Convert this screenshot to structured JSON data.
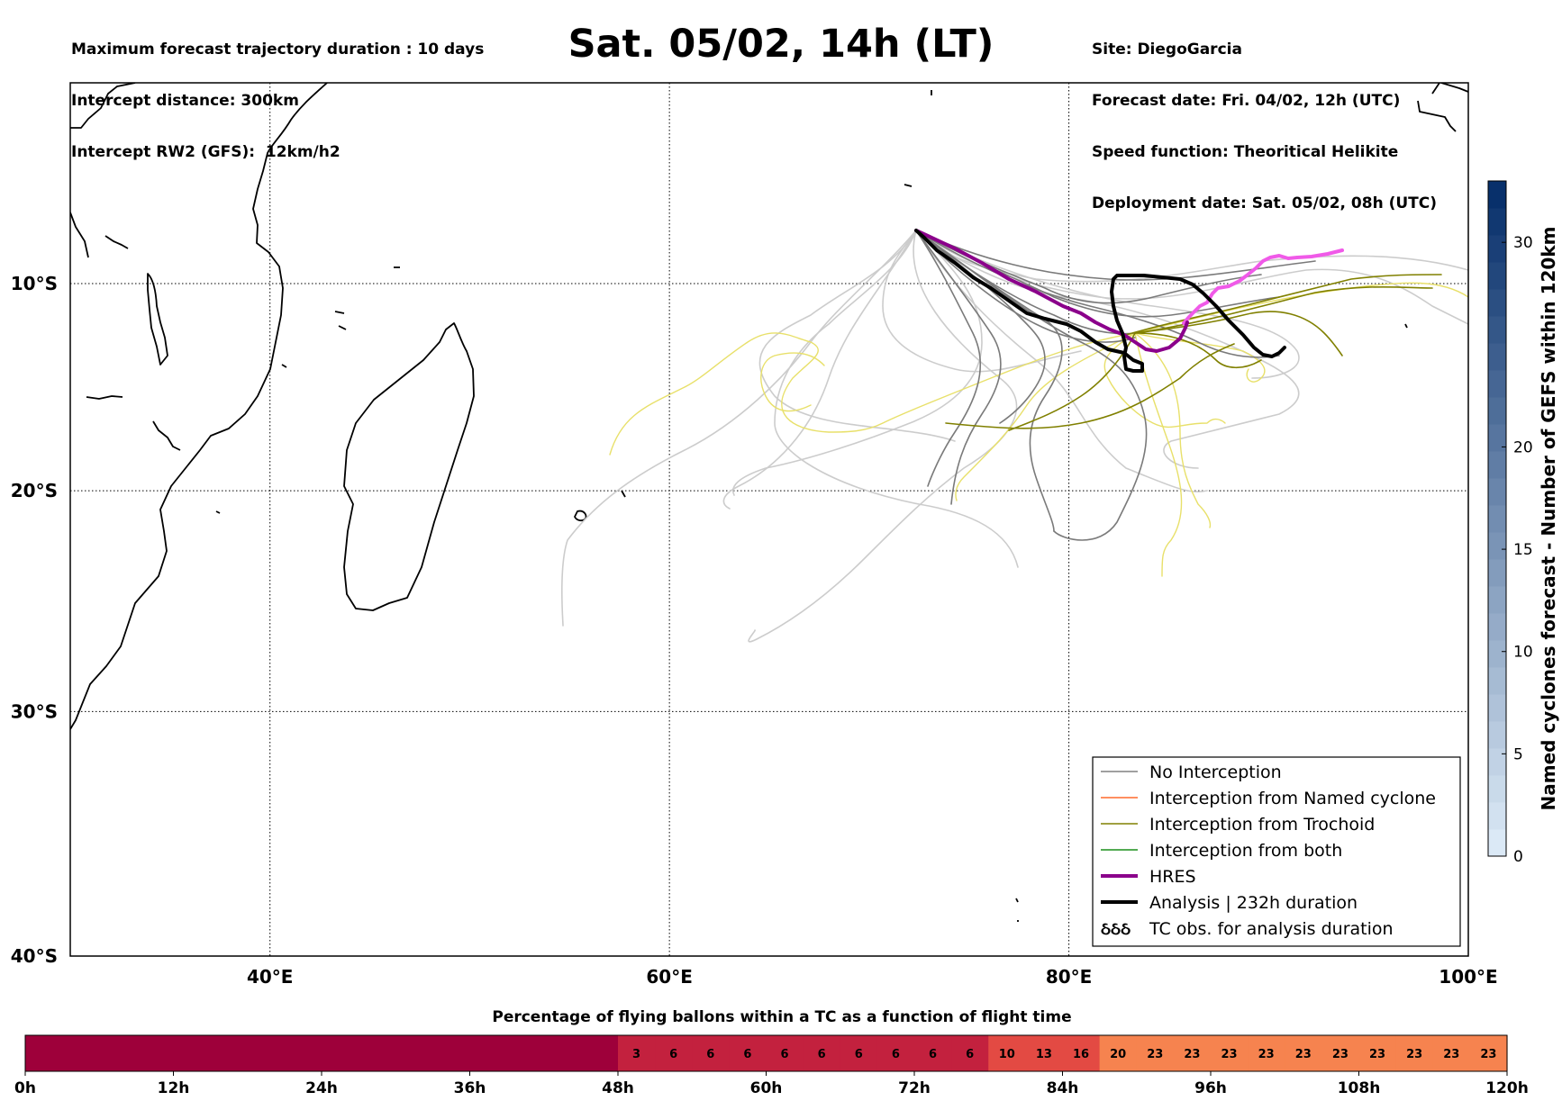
{
  "header": {
    "left_lines": [
      "Maximum forecast trajectory duration : 10 days",
      "Intercept distance: 300km",
      "Intercept RW2 (GFS):  12km/h2"
    ],
    "title": "Sat. 05/02, 14h (LT)",
    "right_lines": [
      "Site: DiegoGarcia",
      "Forecast date: Fri. 04/02, 12h (UTC)",
      "Speed function: Theoritical Helikite",
      "Deployment date: Sat. 05/02, 08h (UTC)"
    ]
  },
  "map": {
    "lon_range": [
      30,
      100
    ],
    "lat_range": [
      -40,
      0
    ],
    "lon_ticks": [
      {
        "value": 40,
        "label": "40°E"
      },
      {
        "value": 60,
        "label": "60°E"
      },
      {
        "value": 80,
        "label": "80°E"
      },
      {
        "value": 100,
        "label": "100°E"
      }
    ],
    "lat_ticks": [
      {
        "value": -10,
        "label": "10°S"
      },
      {
        "value": -20,
        "label": "20°S"
      },
      {
        "value": -30,
        "label": "30°S"
      },
      {
        "value": -40,
        "label": "40°S"
      }
    ],
    "gridlines": "dotted"
  },
  "legend": {
    "items": [
      {
        "label": "No Interception",
        "color": "#808080",
        "style": "thin-line"
      },
      {
        "label": "Interception from Named cyclone",
        "color": "#ff6a2b",
        "style": "thin-line"
      },
      {
        "label": "Interception from Trochoid",
        "color": "#808000",
        "style": "thin-line"
      },
      {
        "label": "Interception from both",
        "color": "#1a8f1a",
        "style": "thin-line"
      },
      {
        "label": "HRES",
        "color": "#8b008b",
        "style": "thick-line"
      },
      {
        "label": "Analysis | 232h duration",
        "color": "#000000",
        "style": "thick-line"
      },
      {
        "label": "TC obs. for analysis duration",
        "color": "#000000",
        "style": "cyclone-symbols",
        "symbol": "ઠઠઠ"
      }
    ]
  },
  "colorbar": {
    "title": "Named cyclones forecast - Number of GEFS within 120km",
    "min": 0,
    "max": 33,
    "ticks": [
      0,
      5,
      10,
      15,
      20,
      30
    ],
    "colormap": "Blues",
    "color_low": "#dbe9f6",
    "color_high": "#08306b"
  },
  "timebar": {
    "title": "Percentage of flying ballons within a TC as a function of flight time",
    "values": [
      null,
      null,
      null,
      null,
      null,
      null,
      null,
      null,
      null,
      null,
      null,
      null,
      null,
      null,
      null,
      null,
      3,
      6,
      6,
      6,
      6,
      6,
      6,
      6,
      6,
      6,
      10,
      13,
      16,
      20,
      23,
      23,
      23,
      23,
      23,
      23,
      23,
      23,
      23,
      23
    ],
    "hour_labels": [
      "0h",
      "12h",
      "24h",
      "36h",
      "48h",
      "60h",
      "72h",
      "84h",
      "96h",
      "108h",
      "120h"
    ],
    "color_zero": "#9e003a",
    "color_low": "#c3213e",
    "color_mid": "#e34a43",
    "color_high": "#f6834f"
  }
}
